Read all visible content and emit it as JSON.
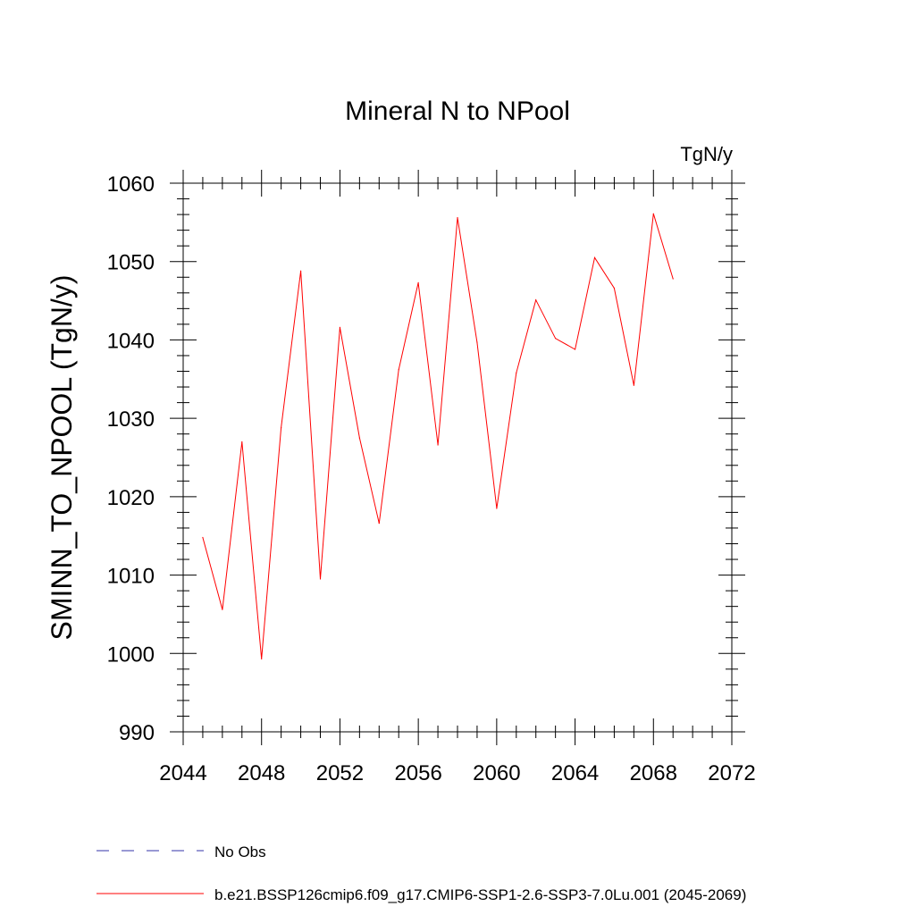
{
  "chart_data": {
    "type": "line",
    "title": "Mineral N to NPool",
    "units_label": "TgN/y",
    "xlabel": "",
    "ylabel": "SMINN_TO_NPOOL  (TgN/y)",
    "xlim": [
      2044,
      2072
    ],
    "ylim": [
      990,
      1060
    ],
    "x_ticks": [
      2044,
      2048,
      2052,
      2056,
      2060,
      2064,
      2068,
      2072
    ],
    "x_tick_labels": [
      "2044",
      "2048",
      "2052",
      "2056",
      "2060",
      "2064",
      "2068",
      "2072"
    ],
    "y_ticks": [
      990,
      1000,
      1010,
      1020,
      1030,
      1040,
      1050,
      1060
    ],
    "y_tick_labels": [
      "990",
      "1000",
      "1010",
      "1020",
      "1030",
      "1040",
      "1050",
      "1060"
    ],
    "grid": false,
    "legend_placement": "bottom",
    "x": [
      2045,
      2046,
      2047,
      2048,
      2049,
      2050,
      2051,
      2052,
      2053,
      2054,
      2055,
      2056,
      2057,
      2058,
      2059,
      2060,
      2061,
      2062,
      2063,
      2064,
      2065,
      2066,
      2067,
      2068,
      2069
    ],
    "series": [
      {
        "name": "b.e21.BSSP126cmip6.f09_g17.CMIP6-SSP1-2.6-SSP3-7.0Lu.001 (2045-2069)",
        "color": "#ff0000",
        "values": [
          1014.8,
          1005.6,
          1027.0,
          999.3,
          1028.8,
          1048.8,
          1009.5,
          1041.6,
          1027.5,
          1016.6,
          1036.2,
          1047.3,
          1026.6,
          1055.6,
          1039.7,
          1018.5,
          1035.8,
          1045.1,
          1040.2,
          1038.8,
          1050.5,
          1046.6,
          1034.2,
          1056.1,
          1047.8
        ]
      }
    ],
    "legend": [
      {
        "label": "No Obs",
        "color": "#3333aa",
        "style": "dashed"
      },
      {
        "label": "b.e21.BSSP126cmip6.f09_g17.CMIP6-SSP1-2.6-SSP3-7.0Lu.001 (2045-2069)",
        "color": "#ff0000",
        "style": "solid"
      }
    ]
  }
}
